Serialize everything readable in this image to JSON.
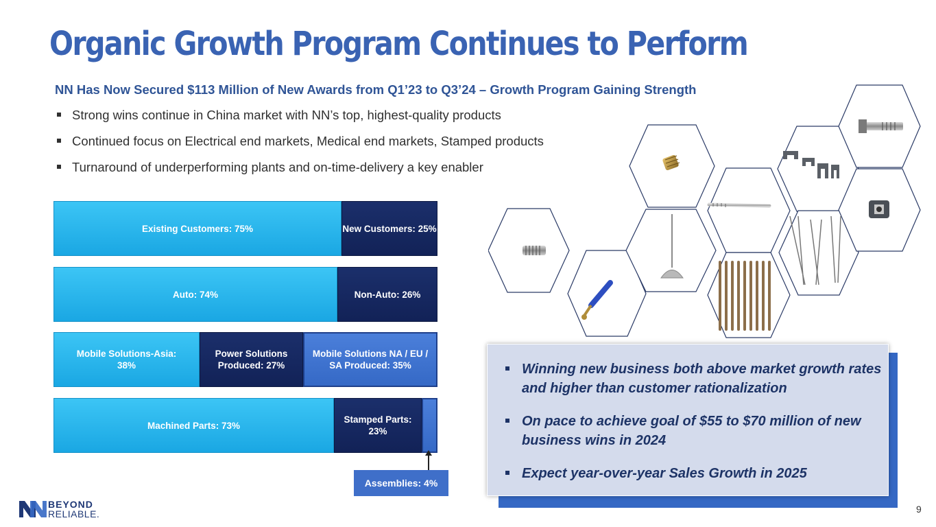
{
  "slide": {
    "title": "Organic Growth Program Continues to Perform",
    "subtitle": "NN Has Now Secured $113 Million of New Awards from Q1’23 to Q3’24 – Growth Program Gaining Strength",
    "bullets": [
      "Strong wins continue in China market with NN’s top, highest-quality products",
      "Continued focus on Electrical end markets, Medical end markets, Stamped products",
      "Turnaround of underperforming plants and on-time-delivery a key enabler"
    ],
    "page_number": "9"
  },
  "bars": {
    "customers": {
      "existing": {
        "label": "Existing Customers: 75%",
        "share": 75
      },
      "new": {
        "label": "New Customers: 25%",
        "share": 25
      }
    },
    "market": {
      "auto": {
        "label": "Auto: 74%",
        "share": 74
      },
      "non_auto": {
        "label": "Non-Auto: 26%",
        "share": 26
      }
    },
    "segment": {
      "asia": {
        "label": "Mobile Solutions-Asia: 38%",
        "share": 38
      },
      "power": {
        "label": "Power Solutions Produced: 27%",
        "share": 27
      },
      "na_eu_sa": {
        "label": "Mobile Solutions NA / EU / SA Produced: 35%",
        "share": 35
      }
    },
    "product": {
      "machined": {
        "label": "Machined Parts: 73%",
        "share": 73
      },
      "stamped": {
        "label": "Stamped Parts: 23%",
        "share": 23
      },
      "assemblies": {
        "label": "Assemblies: 4%",
        "share": 4
      }
    }
  },
  "callout": {
    "items": [
      "Winning new business both above market growth rates and higher than customer rationalization",
      "On pace to achieve goal of $55 to $70 million of new business wins in 2024",
      "Expect year-over-year Sales Growth in 2025"
    ]
  },
  "logo": {
    "line1": "BEYOND",
    "line2": "RELIABLE."
  },
  "colors": {
    "title": "#3a63b3",
    "cyan": "#1aa7e3",
    "navy": "#122257",
    "blue": "#3569c6"
  }
}
